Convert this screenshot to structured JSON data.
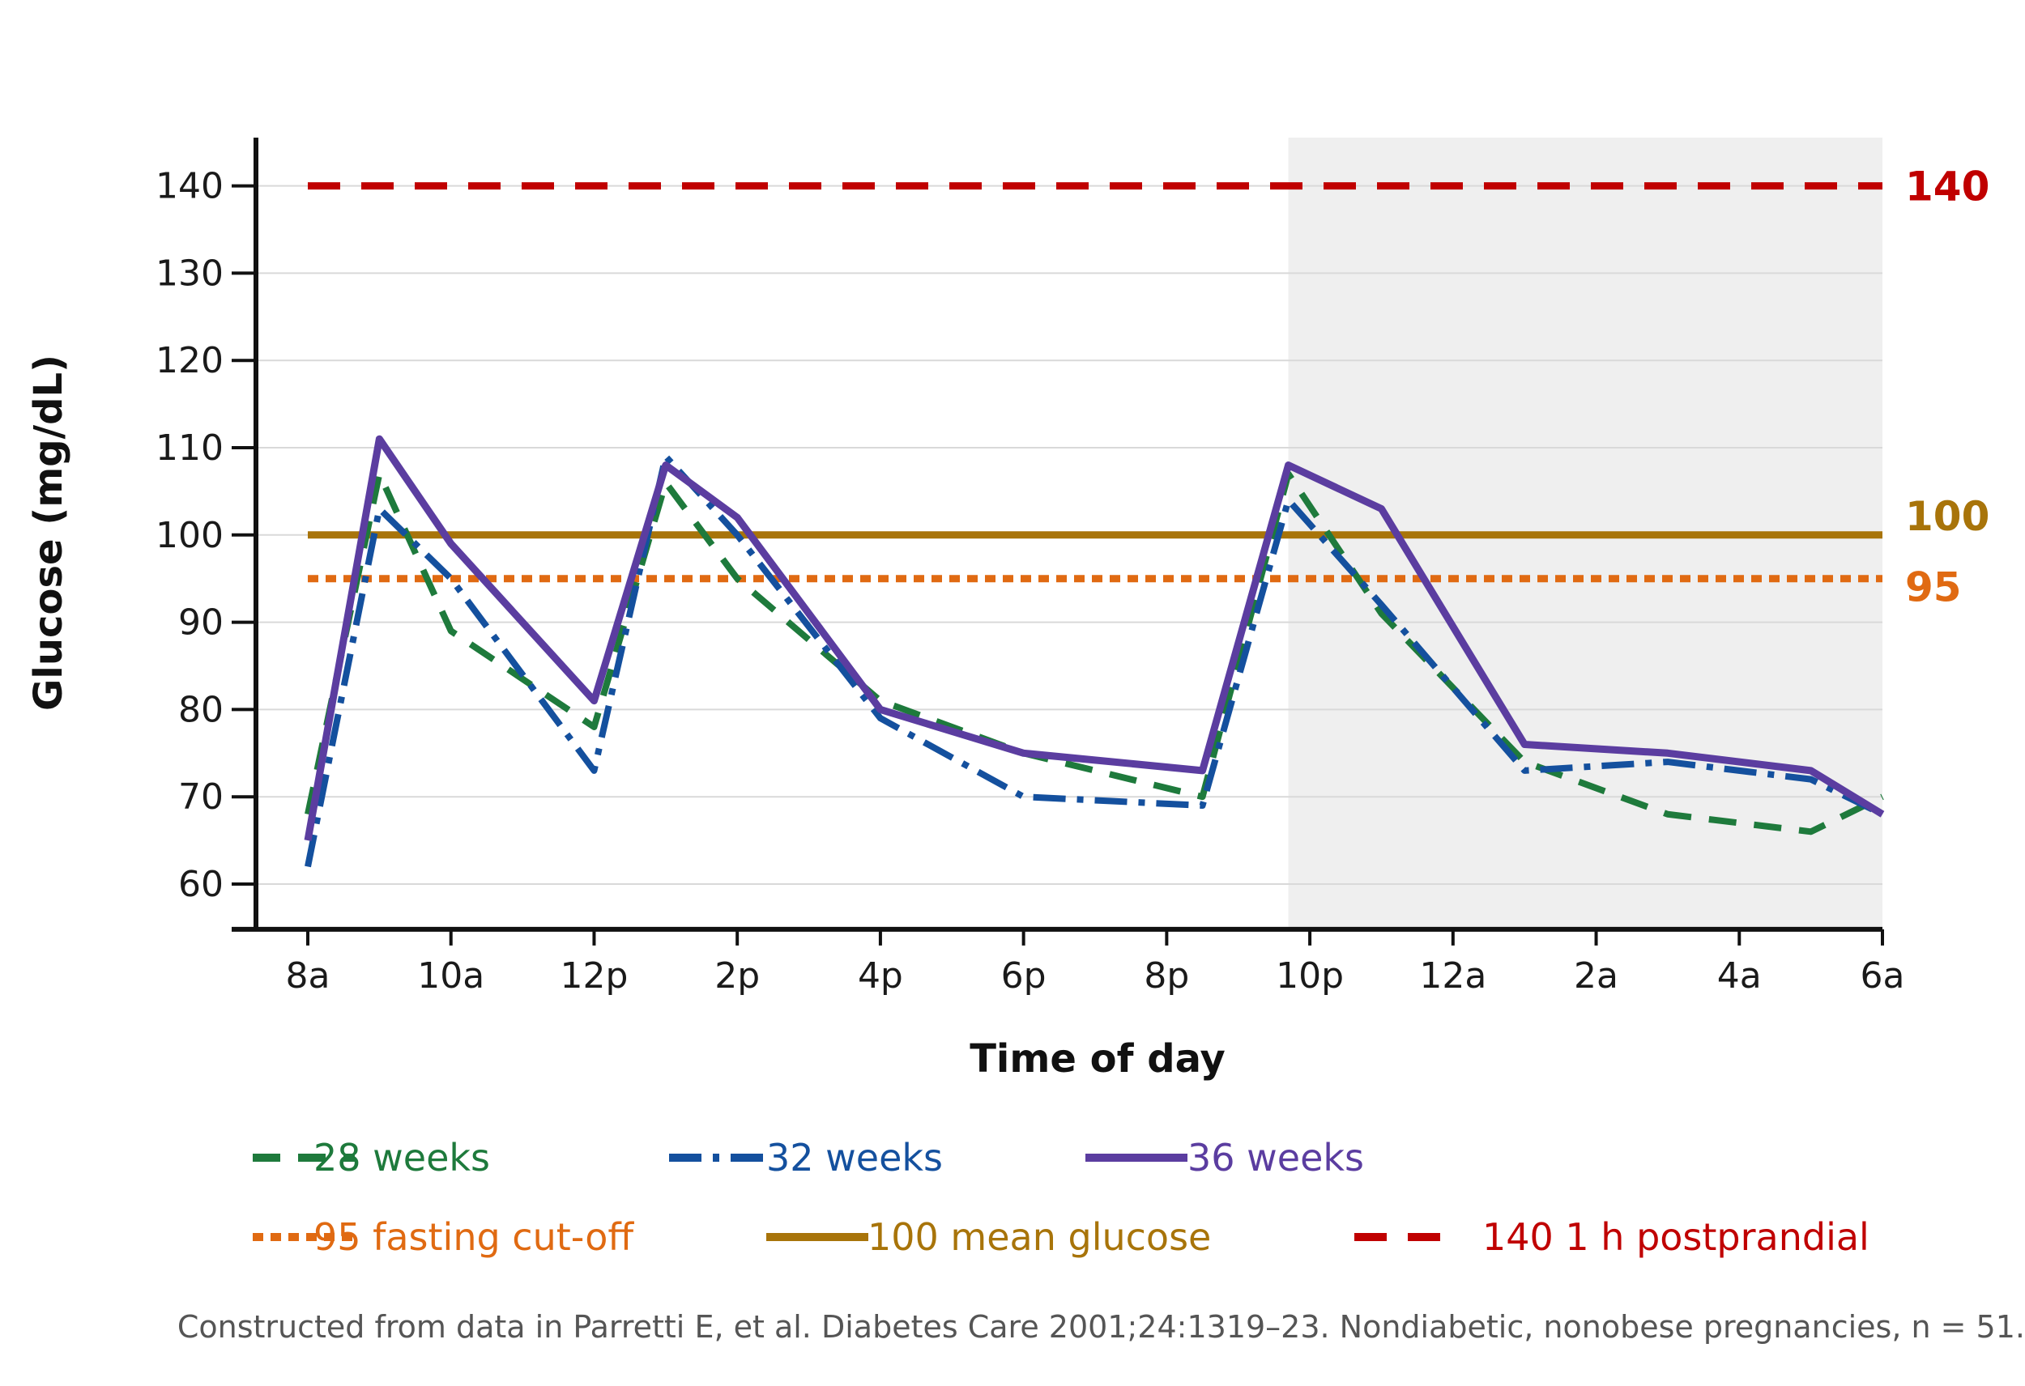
{
  "chart_data": {
    "type": "line",
    "xlabel": "Time of day",
    "ylabel": "Glucose (mg/dL)",
    "ylim": [
      55,
      145
    ],
    "y_ticks": [
      60,
      70,
      80,
      90,
      100,
      110,
      120,
      130,
      140
    ],
    "x_tick_labels": [
      "8a",
      "10a",
      "12p",
      "2p",
      "4p",
      "6p",
      "8p",
      "10p",
      "12a",
      "2a",
      "4a",
      "6a"
    ],
    "x_unit": "hours from 8 a.m.",
    "xlim": [
      0,
      22
    ],
    "grid": "horizontal",
    "shaded_region": {
      "x_start": 13.7,
      "x_end": 22,
      "color": "#efefef"
    },
    "series": [
      {
        "name": "28 weeks",
        "color": "#1e7a3c",
        "style": "dashed",
        "x": [
          0,
          1,
          2,
          4,
          5,
          6,
          8,
          10,
          12.5,
          13.7,
          15,
          17,
          19,
          21,
          22
        ],
        "y": [
          68,
          107,
          89,
          78,
          106,
          95,
          81,
          75,
          70,
          107,
          91,
          74,
          68,
          66,
          70
        ]
      },
      {
        "name": "32 weeks",
        "color": "#14509e",
        "style": "dash-dot",
        "x": [
          0,
          1,
          2,
          4,
          5,
          6,
          8,
          10,
          12.5,
          13.7,
          15,
          17,
          19,
          21,
          22
        ],
        "y": [
          62,
          103,
          95,
          73,
          109,
          100,
          79,
          70,
          69,
          104,
          92,
          73,
          74,
          72,
          68
        ]
      },
      {
        "name": "36 weeks",
        "color": "#5b3da0",
        "style": "solid",
        "x": [
          0,
          1,
          2,
          4,
          5,
          6,
          8,
          10,
          12.5,
          13.7,
          15,
          17,
          19,
          21,
          22
        ],
        "y": [
          65,
          111,
          99,
          81,
          108,
          102,
          80,
          75,
          73,
          108,
          103,
          76,
          75,
          73,
          68
        ]
      }
    ],
    "reference_lines": [
      {
        "value": 140,
        "label": "140",
        "legend": "140 1 h postprandial",
        "color": "#c00000",
        "style": "dashed"
      },
      {
        "value": 100,
        "label": "100",
        "legend": "100 mean glucose",
        "color": "#a8740a",
        "style": "solid"
      },
      {
        "value": 95,
        "label": "95",
        "legend": "95 fasting cut-off",
        "color": "#e06a12",
        "style": "dotted"
      }
    ],
    "legend_position": "bottom",
    "note": "Constructed from data in Parretti E, et al. Diabetes Care 2001;24:1319–23. Nondiabetic, nonobese pregnancies, n = 51."
  }
}
